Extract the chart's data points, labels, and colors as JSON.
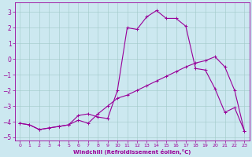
{
  "title": "",
  "xlabel": "Windchill (Refroidissement éolien,°C)",
  "ylabel": "",
  "xlim": [
    -0.5,
    23.5
  ],
  "ylim": [
    -5.2,
    3.6
  ],
  "xticks": [
    0,
    1,
    2,
    3,
    4,
    5,
    6,
    7,
    8,
    9,
    10,
    11,
    12,
    13,
    14,
    15,
    16,
    17,
    18,
    19,
    20,
    21,
    22,
    23
  ],
  "yticks": [
    -5,
    -4,
    -3,
    -2,
    -1,
    0,
    1,
    2,
    3
  ],
  "background_color": "#cce8f0",
  "line_color": "#990099",
  "line1_x": [
    0,
    1,
    2,
    3,
    4,
    5,
    6,
    7,
    8,
    9,
    10,
    11,
    12,
    13,
    14,
    15,
    16,
    17,
    18,
    19,
    20,
    21,
    22,
    23
  ],
  "line1_y": [
    -4.1,
    -4.2,
    -4.5,
    -4.4,
    -4.3,
    -4.2,
    -3.6,
    -3.5,
    -3.7,
    -3.8,
    -2.0,
    2.0,
    1.9,
    2.7,
    3.1,
    2.6,
    2.6,
    2.1,
    -0.6,
    -0.7,
    -1.9,
    -3.4,
    -3.1,
    -4.6
  ],
  "line2_x": [
    0,
    1,
    2,
    3,
    4,
    5,
    6,
    7,
    8,
    9,
    10,
    11,
    12,
    13,
    14,
    15,
    16,
    17,
    18,
    19,
    20,
    21,
    22,
    23
  ],
  "line2_y": [
    -4.1,
    -4.2,
    -4.5,
    -4.4,
    -4.3,
    -4.2,
    -3.9,
    -4.1,
    -3.5,
    -3.0,
    -2.5,
    -2.3,
    -2.0,
    -1.7,
    -1.4,
    -1.1,
    -0.8,
    -0.5,
    -0.25,
    -0.1,
    0.15,
    -0.5,
    -2.0,
    -4.6
  ]
}
